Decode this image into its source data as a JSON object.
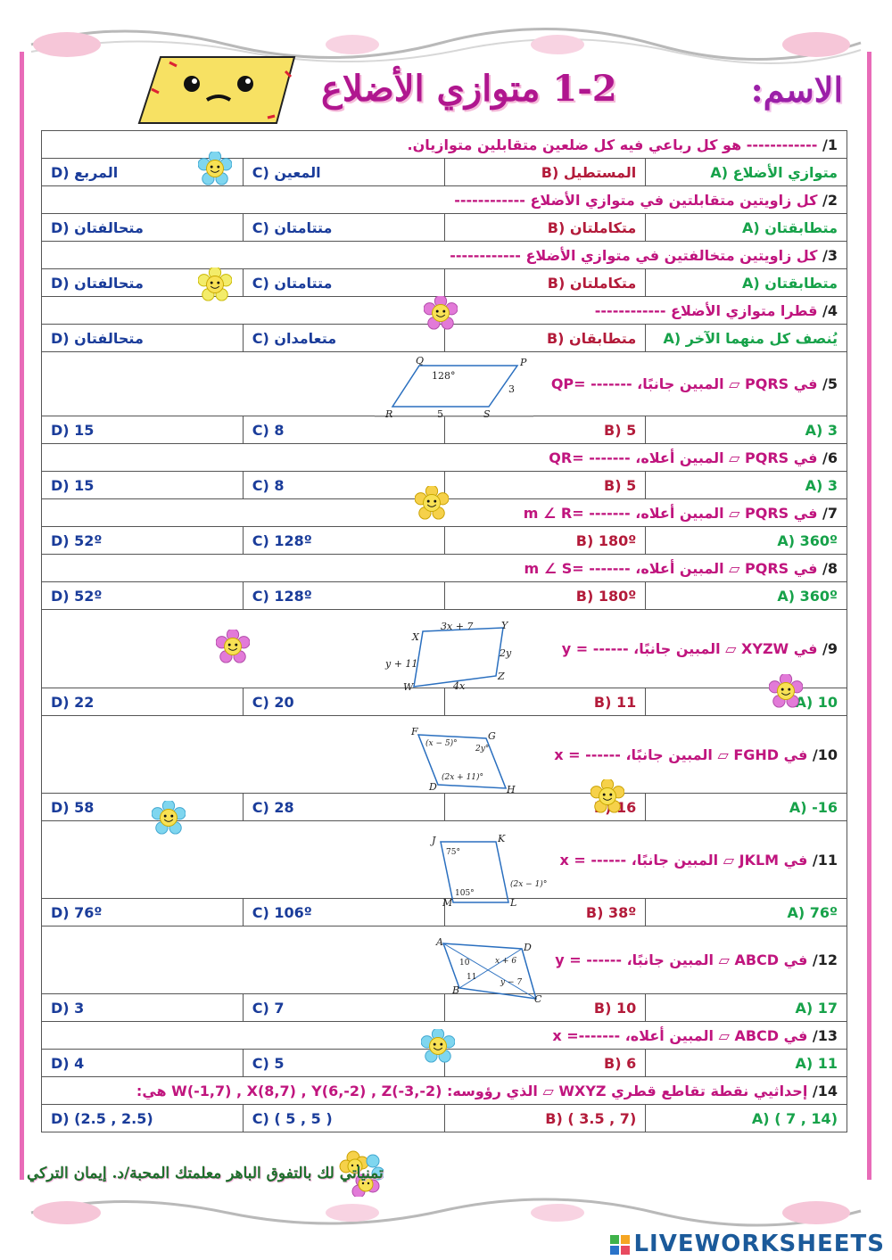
{
  "header": {
    "name_label": "الاسم:",
    "title": "1-2 متوازي الأضلاع"
  },
  "questions": [
    {
      "num": "1/",
      "text": "------------ هو كل رباعي فيه كل ضلعين متقابلين متوازيان.",
      "options": [
        "متوازي الأضلاع (A",
        "المستطيل (B",
        "المعين (C",
        "المربع (D"
      ]
    },
    {
      "num": "2/",
      "text": "كل زاويتين متقابلتين في متوازي الأضلاع ------------",
      "options": [
        "متطابقتان (A",
        "متكاملتان (B",
        "متتامتان (C",
        "متحالفتان (D"
      ]
    },
    {
      "num": "3/",
      "text": "كل زاويتين متخالفتين في متوازي الأضلاع ------------",
      "options": [
        "متطابقتان (A",
        "متكاملتان (B",
        "متتامتان (C",
        "متحالفتان (D"
      ]
    },
    {
      "num": "4/",
      "text": "قطرا متوازي الأضلاع ------------",
      "options": [
        "يُنصف كل منهما الآخر (A",
        "متطابقان (B",
        "متعامدان (C",
        "متحالفتان (D"
      ]
    },
    {
      "num": "5/",
      "text": "في PQRS ▱ المبين جانبًا، ------- =QP",
      "options": [
        "A) 3",
        "B) 5",
        "C) 8",
        "D) 15"
      ]
    },
    {
      "num": "6/",
      "text": "في PQRS ▱ المبين أعلاه، ------- =QR",
      "options": [
        "A) 3",
        "B) 5",
        "C) 8",
        "D) 15"
      ]
    },
    {
      "num": "7/",
      "text": "في PQRS ▱ المبين أعلاه، ------- =m ∠ R",
      "options": [
        "A) 360º",
        "B) 180º",
        "C) 128º",
        "D) 52º"
      ]
    },
    {
      "num": "8/",
      "text": "في PQRS ▱ المبين أعلاه، ------- =m ∠ S",
      "options": [
        "A) 360º",
        "B) 180º",
        "C) 128º",
        "D) 52º"
      ]
    },
    {
      "num": "9/",
      "text": "في XYZW ▱ المبين جانبًا، ------ = y",
      "options": [
        "A) 10",
        "B) 11",
        "C) 20",
        "D) 22"
      ]
    },
    {
      "num": "10/",
      "text": "في FGHD ▱ المبين جانبًا، ------ = x",
      "options": [
        "A) -16",
        "B) 16",
        "C) 28",
        "D) 58"
      ]
    },
    {
      "num": "11/",
      "text": "في JKLM ▱ المبين جانبًا، ------ = x",
      "options": [
        "A) 76º",
        "B) 38º",
        "C) 106º",
        "D) 76º"
      ]
    },
    {
      "num": "12/",
      "text": "في ABCD ▱ المبين جانبًا، ------ = y",
      "options": [
        "A) 17",
        "B) 10",
        "C) 7",
        "D) 3"
      ]
    },
    {
      "num": "13/",
      "text": "في ABCD ▱ المبين أعلاه، -------= x",
      "options": [
        "A) 11",
        "B) 6",
        "C) 5",
        "D) 4"
      ]
    },
    {
      "num": "14/",
      "text": "إحداثيي نقطة تقاطع قطري WXYZ ▱ الذي رؤوسه: W(-1,7) , X(8,7) , Y(6,-2) , Z(-3,-2) هي:",
      "options": [
        "A) ( 7 , 14)",
        "B) ( 3.5 , 7)",
        "C) ( 5 , 5 )",
        "D) (2.5 , 2.5)"
      ]
    }
  ],
  "figures": {
    "pqrs": {
      "labels": [
        "Q",
        "P",
        "R",
        "S"
      ],
      "angle": "128°",
      "side_ps": "3",
      "side_rs": "5"
    },
    "xyzw": {
      "labels": [
        "X",
        "Y",
        "W",
        "Z"
      ],
      "top": "3x + 7",
      "left": "y + 11",
      "right": "2y",
      "bottom": "4x"
    },
    "fghd": {
      "labels": [
        "F",
        "G",
        "D",
        "H"
      ],
      "angle_f": "(x − 5)°",
      "angle_g": "2y°",
      "angle_d": "(2x + 11)°"
    },
    "jklm": {
      "labels": [
        "J",
        "K",
        "M",
        "L"
      ],
      "angle_j": "75°",
      "angle_m": "105°",
      "angle_l": "(2x − 1)°"
    },
    "abcd": {
      "labels": [
        "A",
        "D",
        "B",
        "C"
      ],
      "seg1": "10",
      "seg2": "11",
      "seg3": "x + 6",
      "seg4": "y − 7"
    }
  },
  "footer": {
    "text": "تمنياتي لك بالتفوق الباهر  معلمتك المحبة/د. إيمان التركي"
  },
  "brand": {
    "name": "LIVEWORKSHEETS"
  }
}
